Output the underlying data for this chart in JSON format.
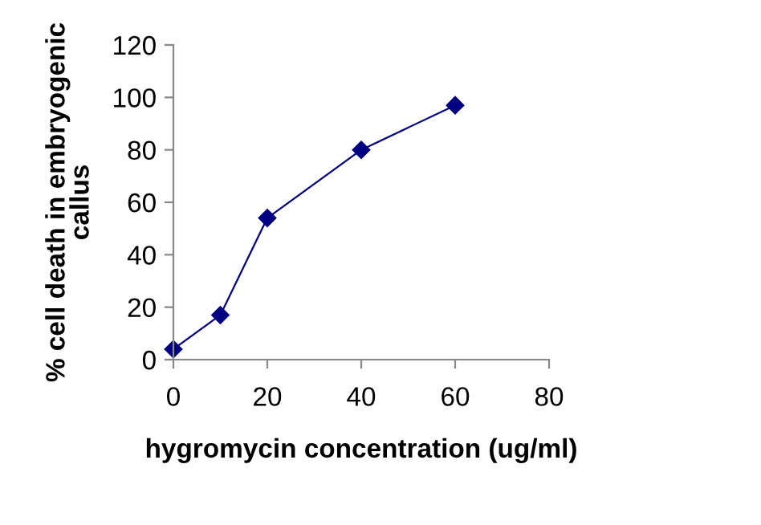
{
  "chart_data": {
    "type": "line",
    "xlabel": "hygromycin concentration (ug/ml)",
    "ylabel": "% cell death in embryogenic\ncallus",
    "x": [
      0,
      10,
      20,
      40,
      60
    ],
    "series": [
      {
        "color": "#000080",
        "values": [
          4,
          17,
          54,
          80,
          97
        ]
      }
    ],
    "xlim": [
      0,
      80
    ],
    "xticks": [
      0,
      20,
      40,
      60,
      80
    ],
    "ylim": [
      0,
      120
    ],
    "yticks": [
      0,
      20,
      40,
      60,
      80,
      100,
      120
    ],
    "marker": "diamond",
    "line_style": "solid",
    "grid": false,
    "legend": false
  }
}
